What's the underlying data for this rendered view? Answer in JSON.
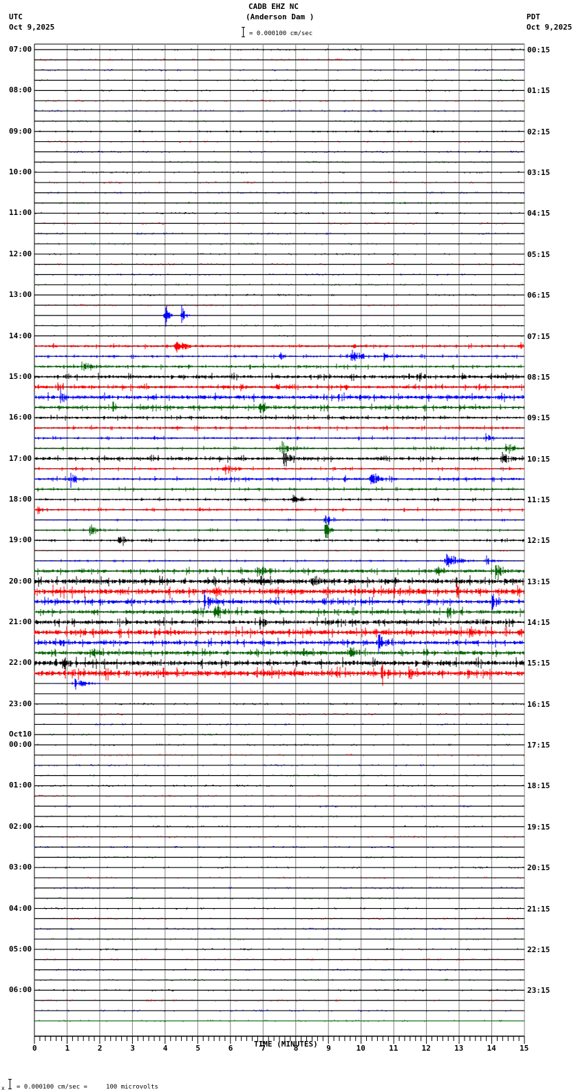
{
  "header": {
    "station": "CADB EHZ NC",
    "location": "(Anderson Dam )",
    "scale_label": "= 0.000100 cm/sec",
    "left_tz": "UTC",
    "left_date": "Oct 9,2025",
    "right_tz": "PDT",
    "right_date": "Oct 9,2025"
  },
  "footer": {
    "xlabel": "TIME (MINUTES)",
    "scale_note": "= 0.000100 cm/sec =     100 microvolts",
    "scale_prefix": "x"
  },
  "chart_data": {
    "type": "helicorder",
    "title": "CADB EHZ NC (Anderson Dam )",
    "xlabel": "TIME (MINUTES)",
    "xlim": [
      0,
      15
    ],
    "x_ticks": [
      0,
      1,
      2,
      3,
      4,
      5,
      6,
      7,
      8,
      9,
      10,
      11,
      12,
      13,
      14,
      15
    ],
    "minor_ticks_per_minute": 6,
    "trace_colors": [
      "#000000",
      "#ff0000",
      "#0000ff",
      "#006400"
    ],
    "traces_per_hour": 4,
    "num_traces": 96,
    "left_labels": [
      {
        "trace": 0,
        "text": "07:00"
      },
      {
        "trace": 4,
        "text": "08:00"
      },
      {
        "trace": 8,
        "text": "09:00"
      },
      {
        "trace": 12,
        "text": "10:00"
      },
      {
        "trace": 16,
        "text": "11:00"
      },
      {
        "trace": 20,
        "text": "12:00"
      },
      {
        "trace": 24,
        "text": "13:00"
      },
      {
        "trace": 28,
        "text": "14:00"
      },
      {
        "trace": 32,
        "text": "15:00"
      },
      {
        "trace": 36,
        "text": "16:00"
      },
      {
        "trace": 40,
        "text": "17:00"
      },
      {
        "trace": 44,
        "text": "18:00"
      },
      {
        "trace": 48,
        "text": "19:00"
      },
      {
        "trace": 52,
        "text": "20:00"
      },
      {
        "trace": 56,
        "text": "21:00"
      },
      {
        "trace": 60,
        "text": "22:00"
      },
      {
        "trace": 64,
        "text": "23:00"
      },
      {
        "trace": 68,
        "text": "00:00",
        "above": "Oct10"
      },
      {
        "trace": 72,
        "text": "01:00"
      },
      {
        "trace": 76,
        "text": "02:00"
      },
      {
        "trace": 80,
        "text": "03:00"
      },
      {
        "trace": 84,
        "text": "04:00"
      },
      {
        "trace": 88,
        "text": "05:00"
      },
      {
        "trace": 92,
        "text": "06:00"
      }
    ],
    "right_labels": [
      "00:15",
      "01:15",
      "02:15",
      "03:15",
      "04:15",
      "05:15",
      "06:15",
      "07:15",
      "08:15",
      "09:15",
      "10:15",
      "11:15",
      "12:15",
      "13:15",
      "14:15",
      "15:15",
      "16:15",
      "17:15",
      "18:15",
      "19:15",
      "20:15",
      "21:15",
      "22:15",
      "23:15"
    ],
    "noise_level": [
      0,
      0,
      0,
      0,
      0,
      0,
      0,
      0,
      0,
      0,
      0,
      0,
      0,
      0,
      0,
      0,
      0,
      0,
      0,
      0,
      0,
      0,
      0,
      0,
      0,
      0,
      0.3,
      0,
      0.5,
      1.5,
      1.2,
      1.5,
      2,
      2,
      2.5,
      2,
      1.5,
      1.5,
      1.2,
      1.2,
      2,
      1.2,
      1.5,
      1.2,
      1.2,
      1.2,
      0.8,
      1.0,
      1.2,
      0.5,
      0.8,
      2.2,
      3,
      3.5,
      2.5,
      2.5,
      2.5,
      3,
      2.5,
      2.5,
      3,
      3.5,
      0.3,
      0.2,
      0,
      0,
      0,
      0,
      0,
      0,
      0,
      0,
      0,
      0,
      0,
      0,
      0,
      0,
      0,
      0,
      0,
      0,
      0,
      0,
      0,
      0,
      0,
      0,
      0,
      0,
      0,
      0
    ],
    "events": [
      {
        "trace": 8,
        "minute": 12.2,
        "amp": 5,
        "dur": 0.1
      },
      {
        "trace": 15,
        "minute": 11.1,
        "amp": 3,
        "dur": 0.4
      },
      {
        "trace": 26,
        "minute": 4.0,
        "amp": 22,
        "dur": 0.3
      },
      {
        "trace": 26,
        "minute": 4.5,
        "amp": 18,
        "dur": 0.3
      },
      {
        "trace": 29,
        "minute": 4.3,
        "amp": 10,
        "dur": 1.0
      },
      {
        "trace": 29,
        "minute": 9.7,
        "amp": 5,
        "dur": 0.5
      },
      {
        "trace": 29,
        "minute": 14.8,
        "amp": 6,
        "dur": 0.5
      },
      {
        "trace": 30,
        "minute": 7.5,
        "amp": 8,
        "dur": 0.4
      },
      {
        "trace": 30,
        "minute": 9.7,
        "amp": 12,
        "dur": 1.0
      },
      {
        "trace": 30,
        "minute": 10.7,
        "amp": 7,
        "dur": 0.4
      },
      {
        "trace": 31,
        "minute": 1.5,
        "amp": 12,
        "dur": 0.8
      },
      {
        "trace": 32,
        "minute": 1.0,
        "amp": 7,
        "dur": 0.3
      },
      {
        "trace": 32,
        "minute": 11.7,
        "amp": 15,
        "dur": 0.3
      },
      {
        "trace": 32,
        "minute": 13.1,
        "amp": 8,
        "dur": 0.3
      },
      {
        "trace": 33,
        "minute": 0.7,
        "amp": 8,
        "dur": 0.3
      },
      {
        "trace": 33,
        "minute": 6.3,
        "amp": 10,
        "dur": 0.3
      },
      {
        "trace": 33,
        "minute": 7.4,
        "amp": 12,
        "dur": 0.2
      },
      {
        "trace": 33,
        "minute": 9.5,
        "amp": 8,
        "dur": 0.3
      },
      {
        "trace": 34,
        "minute": 0.8,
        "amp": 12,
        "dur": 0.4
      },
      {
        "trace": 35,
        "minute": 2.4,
        "amp": 12,
        "dur": 0.3
      },
      {
        "trace": 35,
        "minute": 6.9,
        "amp": 14,
        "dur": 0.6
      },
      {
        "trace": 38,
        "minute": 13.8,
        "amp": 12,
        "dur": 0.5
      },
      {
        "trace": 39,
        "minute": 7.5,
        "amp": 14,
        "dur": 0.9
      },
      {
        "trace": 39,
        "minute": 14.4,
        "amp": 14,
        "dur": 0.6
      },
      {
        "trace": 40,
        "minute": 7.6,
        "amp": 16,
        "dur": 0.9
      },
      {
        "trace": 40,
        "minute": 14.3,
        "amp": 14,
        "dur": 0.6
      },
      {
        "trace": 41,
        "minute": 5.8,
        "amp": 12,
        "dur": 0.7
      },
      {
        "trace": 42,
        "minute": 1.1,
        "amp": 16,
        "dur": 0.5
      },
      {
        "trace": 42,
        "minute": 10.3,
        "amp": 12,
        "dur": 0.8
      },
      {
        "trace": 42,
        "minute": 9.5,
        "amp": 6,
        "dur": 0.4
      },
      {
        "trace": 44,
        "minute": 7.9,
        "amp": 8,
        "dur": 1.0
      },
      {
        "trace": 45,
        "minute": 0.1,
        "amp": 8,
        "dur": 0.3
      },
      {
        "trace": 46,
        "minute": 8.9,
        "amp": 16,
        "dur": 0.5
      },
      {
        "trace": 47,
        "minute": 1.7,
        "amp": 12,
        "dur": 0.7
      },
      {
        "trace": 47,
        "minute": 8.9,
        "amp": 22,
        "dur": 0.4
      },
      {
        "trace": 48,
        "minute": 2.6,
        "amp": 18,
        "dur": 0.5
      },
      {
        "trace": 50,
        "minute": 12.6,
        "amp": 12,
        "dur": 1.2
      },
      {
        "trace": 50,
        "minute": 13.8,
        "amp": 10,
        "dur": 0.6
      },
      {
        "trace": 51,
        "minute": 6.8,
        "amp": 14,
        "dur": 1.0
      },
      {
        "trace": 51,
        "minute": 12.3,
        "amp": 10,
        "dur": 0.8
      },
      {
        "trace": 51,
        "minute": 14.1,
        "amp": 16,
        "dur": 0.6
      },
      {
        "trace": 52,
        "minute": 8.5,
        "amp": 12,
        "dur": 0.5
      },
      {
        "trace": 53,
        "minute": 5.5,
        "amp": 14,
        "dur": 0.6
      },
      {
        "trace": 53,
        "minute": 12.9,
        "amp": 14,
        "dur": 0.4
      },
      {
        "trace": 54,
        "minute": 5.2,
        "amp": 18,
        "dur": 0.6
      },
      {
        "trace": 54,
        "minute": 14.0,
        "amp": 14,
        "dur": 0.5
      },
      {
        "trace": 55,
        "minute": 5.5,
        "amp": 16,
        "dur": 0.8
      },
      {
        "trace": 55,
        "minute": 12.6,
        "amp": 12,
        "dur": 0.7
      },
      {
        "trace": 56,
        "minute": 6.9,
        "amp": 14,
        "dur": 0.5
      },
      {
        "trace": 56,
        "minute": 13.4,
        "amp": 12,
        "dur": 0.6
      },
      {
        "trace": 57,
        "minute": 13.3,
        "amp": 10,
        "dur": 0.4
      },
      {
        "trace": 58,
        "minute": 10.5,
        "amp": 20,
        "dur": 0.7
      },
      {
        "trace": 58,
        "minute": 0.8,
        "amp": 10,
        "dur": 0.4
      },
      {
        "trace": 59,
        "minute": 1.8,
        "amp": 12,
        "dur": 0.5
      },
      {
        "trace": 59,
        "minute": 9.6,
        "amp": 14,
        "dur": 0.7
      },
      {
        "trace": 60,
        "minute": 0.9,
        "amp": 18,
        "dur": 0.4
      },
      {
        "trace": 61,
        "minute": 10.6,
        "amp": 16,
        "dur": 0.6
      },
      {
        "trace": 61,
        "minute": 11.4,
        "amp": 16,
        "dur": 0.6
      },
      {
        "trace": 62,
        "minute": 1.2,
        "amp": 12,
        "dur": 1.0
      }
    ]
  }
}
